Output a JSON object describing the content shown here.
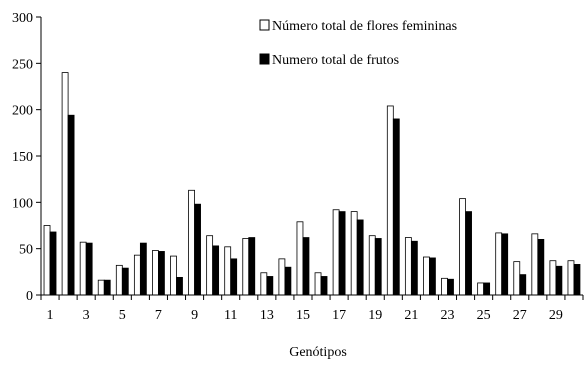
{
  "chart_data": {
    "type": "bar",
    "xlabel": "Genótipos",
    "ylabel": "",
    "ylim": [
      0,
      300
    ],
    "yticks": [
      0,
      50,
      100,
      150,
      200,
      250,
      300
    ],
    "categories": [
      "1",
      "2",
      "3",
      "4",
      "5",
      "6",
      "7",
      "8",
      "9",
      "10",
      "11",
      "12",
      "13",
      "14",
      "15",
      "16",
      "17",
      "18",
      "19",
      "20",
      "21",
      "22",
      "23",
      "24",
      "25",
      "26",
      "27",
      "28",
      "29",
      "30"
    ],
    "xtick_labels": [
      "1",
      "3",
      "5",
      "7",
      "9",
      "11",
      "13",
      "15",
      "17",
      "19",
      "21",
      "23",
      "25",
      "27",
      "29"
    ],
    "grid": false,
    "legend_position": "top-right",
    "series": [
      {
        "name": "Número total de flores femininas",
        "color": "#ffffff",
        "values": [
          75,
          240,
          57,
          16,
          32,
          43,
          48,
          42,
          113,
          64,
          52,
          61,
          24,
          39,
          79,
          24,
          92,
          90,
          64,
          204,
          62,
          41,
          18,
          104,
          13,
          67,
          36,
          66,
          37,
          37
        ]
      },
      {
        "name": "Numero total de frutos",
        "color": "#000000",
        "values": [
          68,
          194,
          56,
          16,
          29,
          56,
          47,
          19,
          98,
          53,
          39,
          62,
          20,
          30,
          62,
          20,
          90,
          81,
          61,
          190,
          58,
          40,
          17,
          90,
          13,
          66,
          22,
          60,
          31,
          33
        ]
      }
    ]
  }
}
